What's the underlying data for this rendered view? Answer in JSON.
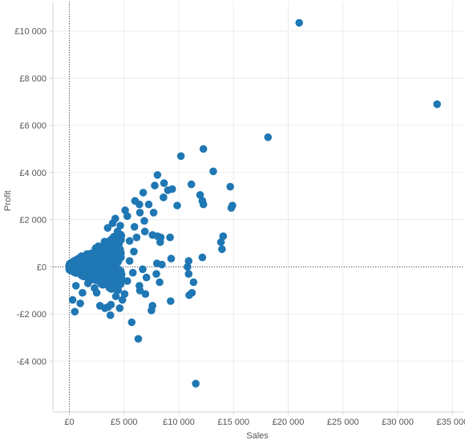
{
  "chart_data": {
    "type": "scatter",
    "title": "",
    "xlabel": "Sales",
    "ylabel": "Profit",
    "xlim": [
      -1500,
      36000
    ],
    "ylim": [
      -6150,
      11250
    ],
    "grid": true,
    "zero_lines": "dotted",
    "colors": {
      "point": "#1f77b4",
      "grid": "#ececec",
      "axis": "#d4d4d4",
      "zero": "#444444"
    },
    "x_ticks": [
      {
        "value": 0,
        "label": "£0"
      },
      {
        "value": 5000,
        "label": "£5 000"
      },
      {
        "value": 10000,
        "label": "£10 000"
      },
      {
        "value": 15000,
        "label": "£15 000"
      },
      {
        "value": 20000,
        "label": "£20 000"
      },
      {
        "value": 25000,
        "label": "£25 000"
      },
      {
        "value": 30000,
        "label": "£30 000"
      },
      {
        "value": 35000,
        "label": "£35 000"
      }
    ],
    "y_ticks": [
      {
        "value": 10000,
        "label": "£10 000"
      },
      {
        "value": 8000,
        "label": "£8 000"
      },
      {
        "value": 6000,
        "label": "£6 000"
      },
      {
        "value": 4000,
        "label": "£4 000"
      },
      {
        "value": 2000,
        "label": "£2 000"
      },
      {
        "value": 0,
        "label": "£0"
      },
      {
        "value": -2000,
        "label": "-£2 000"
      },
      {
        "value": -4000,
        "label": "-£4 000"
      }
    ],
    "points": [
      [
        21000,
        10350
      ],
      [
        33600,
        6900
      ],
      [
        18150,
        5500
      ],
      [
        12250,
        5000
      ],
      [
        10200,
        4700
      ],
      [
        13150,
        4050
      ],
      [
        11150,
        3500
      ],
      [
        14700,
        3400
      ],
      [
        11950,
        3050
      ],
      [
        12150,
        2800
      ],
      [
        12250,
        2650
      ],
      [
        14900,
        2600
      ],
      [
        14800,
        2500
      ],
      [
        14050,
        1300
      ],
      [
        13850,
        1050
      ],
      [
        13950,
        750
      ],
      [
        12150,
        400
      ],
      [
        10900,
        250
      ],
      [
        10800,
        0
      ],
      [
        10900,
        -300
      ],
      [
        11350,
        -650
      ],
      [
        10950,
        -1200
      ],
      [
        11200,
        -1100
      ],
      [
        9250,
        -1450
      ],
      [
        9300,
        350
      ],
      [
        9200,
        1250
      ],
      [
        8350,
        1250
      ],
      [
        9850,
        2600
      ],
      [
        9400,
        3300
      ],
      [
        8050,
        3900
      ],
      [
        7800,
        3450
      ],
      [
        8650,
        3550
      ],
      [
        9000,
        3250
      ],
      [
        8600,
        2950
      ],
      [
        6750,
        3150
      ],
      [
        6400,
        2650
      ],
      [
        6450,
        2300
      ],
      [
        6000,
        2800
      ],
      [
        7250,
        2650
      ],
      [
        7700,
        2300
      ],
      [
        6850,
        1950
      ],
      [
        5100,
        2400
      ],
      [
        5300,
        2150
      ],
      [
        5950,
        1700
      ],
      [
        6900,
        1500
      ],
      [
        6150,
        1250
      ],
      [
        7600,
        1350
      ],
      [
        8300,
        1050
      ],
      [
        8050,
        1300
      ],
      [
        8000,
        150
      ],
      [
        8450,
        100
      ],
      [
        7950,
        -300
      ],
      [
        8250,
        -650
      ],
      [
        7600,
        -1650
      ],
      [
        7500,
        -1850
      ],
      [
        6950,
        -1150
      ],
      [
        6400,
        -800
      ],
      [
        6450,
        -1000
      ],
      [
        7050,
        -450
      ],
      [
        6700,
        -100
      ],
      [
        5700,
        -2350
      ],
      [
        6300,
        -3050
      ],
      [
        11550,
        -4950
      ],
      [
        5050,
        -1150
      ],
      [
        4850,
        -1400
      ],
      [
        4250,
        -1250
      ],
      [
        3800,
        -1600
      ],
      [
        4600,
        -1750
      ],
      [
        3550,
        -1700
      ],
      [
        3250,
        -1750
      ],
      [
        3750,
        -2050
      ],
      [
        2800,
        -1650
      ],
      [
        2500,
        -1100
      ],
      [
        1200,
        -1100
      ],
      [
        1000,
        -1550
      ],
      [
        500,
        -1900
      ],
      [
        300,
        -1400
      ],
      [
        600,
        -800
      ],
      [
        1700,
        -700
      ],
      [
        2300,
        -900
      ],
      [
        4200,
        2050
      ],
      [
        4650,
        1750
      ],
      [
        3950,
        1850
      ],
      [
        4400,
        1500
      ],
      [
        3500,
        1650
      ],
      [
        5500,
        1100
      ],
      [
        5900,
        650
      ],
      [
        4700,
        600
      ],
      [
        5500,
        250
      ],
      [
        4750,
        -450
      ],
      [
        5800,
        -250
      ],
      [
        5300,
        -600
      ]
    ],
    "cluster": {
      "x_max": 4800,
      "y_center": 0,
      "y_span": 1200
    }
  }
}
